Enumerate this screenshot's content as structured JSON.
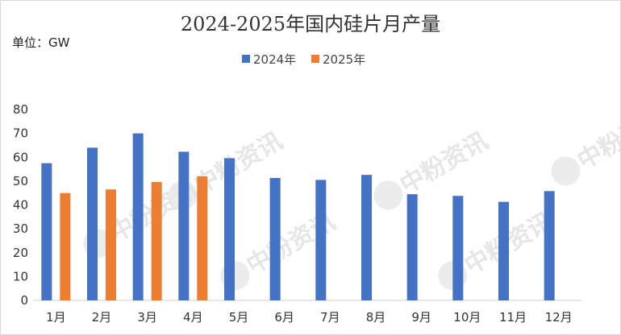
{
  "chart_data": {
    "type": "bar",
    "title": "2024-2025年国内硅片月产量",
    "unit_label": "单位：GW",
    "categories": [
      "1月",
      "2月",
      "3月",
      "4月",
      "5月",
      "6月",
      "7月",
      "8月",
      "9月",
      "10月",
      "11月",
      "12月"
    ],
    "series": [
      {
        "name": "2024年",
        "color": "#4472C4",
        "values": [
          57.5,
          64,
          70,
          62.3,
          59.6,
          51.3,
          50.5,
          52.6,
          44.5,
          43.8,
          41.3,
          45.8
        ]
      },
      {
        "name": "2025年",
        "color": "#ED7D31",
        "values": [
          45,
          46.5,
          49.6,
          52,
          null,
          null,
          null,
          null,
          null,
          null,
          null,
          null
        ]
      }
    ],
    "ylim": [
      0,
      80
    ],
    "yticks": [
      0,
      10,
      20,
      30,
      40,
      50,
      60,
      70,
      80
    ],
    "grid": false,
    "legend_position": "top-center"
  },
  "watermark": {
    "text": "中粉资讯",
    "logo": "P"
  }
}
